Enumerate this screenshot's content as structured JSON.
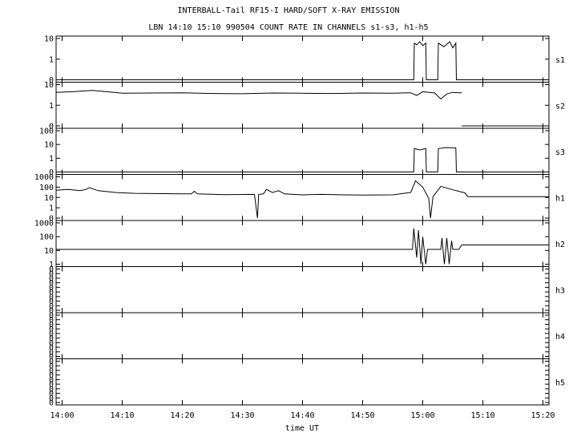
{
  "chart_data": {
    "type": "line",
    "title": "INTERBALL-Tail RF15-I HARD/SOFT X-RAY EMISSION",
    "subtitle": "LBN 14:10 15:10 990504  COUNT RATE IN CHANNELS s1-s3, h1-h5",
    "xlabel": "time UT",
    "xlim": [
      "13:59",
      "15:21"
    ],
    "x_ticks": [
      "14:00",
      "14:10",
      "14:20",
      "14:30",
      "14:40",
      "14:50",
      "15:00",
      "15:10",
      "15:20"
    ],
    "grid": false,
    "panels": [
      {
        "name": "s1",
        "y_ticks": [
          "10",
          "1",
          "0"
        ],
        "y_scale": "log",
        "series": [
          {
            "segments": [
              [
                [
                  "13:59",
                  0.0
                ],
                [
                  "14:58.5",
                  0.0
                ],
                [
                  "14:58.6",
                  6.0
                ],
                [
                  "14:59",
                  5.0
                ],
                [
                  "14:59.5",
                  7.0
                ],
                [
                  "15:00",
                  4.5
                ],
                [
                  "15:00.5",
                  6.0
                ],
                [
                  "15:00.6",
                  0.0
                ],
                [
                  "15:02.5",
                  0.0
                ],
                [
                  "15:02.6",
                  6.0
                ],
                [
                  "15:03.5",
                  4.0
                ],
                [
                  "15:04.5",
                  7.0
                ],
                [
                  "15:05",
                  3.5
                ],
                [
                  "15:05.5",
                  6.0
                ],
                [
                  "15:05.6",
                  0.0
                ],
                [
                  "15:21",
                  0.0
                ]
              ]
            ]
          }
        ]
      },
      {
        "name": "s2",
        "y_ticks": [
          "10",
          "1",
          "0"
        ],
        "y_scale": "log",
        "series": [
          {
            "segments": [
              [
                [
                  "13:59",
                  4.2
                ],
                [
                  "14:02",
                  4.6
                ],
                [
                  "14:05",
                  5.2
                ],
                [
                  "14:08",
                  4.4
                ],
                [
                  "14:10",
                  3.8
                ],
                [
                  "14:15",
                  3.9
                ],
                [
                  "14:20",
                  4.0
                ],
                [
                  "14:25",
                  3.7
                ],
                [
                  "14:30",
                  3.6
                ],
                [
                  "14:35",
                  3.9
                ],
                [
                  "14:40",
                  3.8
                ],
                [
                  "14:45",
                  3.7
                ],
                [
                  "14:50",
                  3.9
                ],
                [
                  "14:55",
                  3.8
                ],
                [
                  "14:58",
                  4.0
                ],
                [
                  "14:59",
                  3.0
                ],
                [
                  "15:00",
                  4.5
                ],
                [
                  "15:02",
                  3.9
                ],
                [
                  "15:03",
                  2.0
                ],
                [
                  "15:04",
                  3.5
                ],
                [
                  "15:05",
                  4.2
                ],
                [
                  "15:06",
                  4.0
                ],
                [
                  "15:06.5",
                  4.0
                ]
              ],
              [
                [
                  "15:06.5",
                  0.0
                ],
                [
                  "15:21",
                  0.0
                ]
              ]
            ]
          }
        ]
      },
      {
        "name": "s3",
        "y_ticks": [
          "100",
          "10",
          "1",
          "0"
        ],
        "y_scale": "log",
        "series": [
          {
            "segments": [
              [
                [
                  "13:59",
                  0.0
                ],
                [
                  "14:58.5",
                  0.0
                ],
                [
                  "14:58.6",
                  5.0
                ],
                [
                  "14:59.5",
                  4.0
                ],
                [
                  "15:00.5",
                  5.0
                ],
                [
                  "15:00.6",
                  0.0
                ],
                [
                  "15:02.5",
                  0.0
                ],
                [
                  "15:02.6",
                  5.0
                ],
                [
                  "15:04",
                  6.0
                ],
                [
                  "15:05.5",
                  5.5
                ],
                [
                  "15:05.6",
                  0.0
                ],
                [
                  "15:21",
                  0.0
                ]
              ]
            ]
          }
        ]
      },
      {
        "name": "h1",
        "y_ticks": [
          "1000",
          "100",
          "10",
          "1",
          "0"
        ],
        "y_scale": "log",
        "series": [
          {
            "segments": [
              [
                [
                  "13:59",
                  50
                ],
                [
                  "14:01",
                  60
                ],
                [
                  "14:03",
                  45
                ],
                [
                  "14:04",
                  60
                ],
                [
                  "14:04.5",
                  90
                ],
                [
                  "14:06",
                  45
                ],
                [
                  "14:09",
                  30
                ],
                [
                  "14:12",
                  25
                ],
                [
                  "14:20",
                  22
                ],
                [
                  "14:21.5",
                  22
                ],
                [
                  "14:22",
                  40
                ],
                [
                  "14:22.5",
                  22
                ],
                [
                  "14:27",
                  19
                ],
                [
                  "14:32",
                  20
                ],
                [
                  "14:32.5",
                  0
                ],
                [
                  "14:32.7",
                  20
                ],
                [
                  "14:33.5",
                  22
                ],
                [
                  "14:34",
                  60
                ],
                [
                  "14:35",
                  30
                ],
                [
                  "14:36",
                  45
                ],
                [
                  "14:37",
                  22
                ],
                [
                  "14:40",
                  18
                ],
                [
                  "14:43",
                  20
                ],
                [
                  "14:47",
                  18
                ],
                [
                  "14:50",
                  17
                ],
                [
                  "14:55",
                  18
                ],
                [
                  "14:58",
                  30
                ],
                [
                  "14:58.8",
                  400
                ],
                [
                  "15:00",
                  100
                ],
                [
                  "15:01",
                  8
                ],
                [
                  "15:01.3",
                  0
                ],
                [
                  "15:01.7",
                  12
                ],
                [
                  "15:03",
                  120
                ],
                [
                  "15:05",
                  55
                ],
                [
                  "15:07",
                  28
                ],
                [
                  "15:07.5",
                  12
                ],
                [
                  "15:21",
                  12
                ]
              ]
            ]
          }
        ]
      },
      {
        "name": "h2",
        "y_ticks": [
          "1000",
          "100",
          "10",
          "1"
        ],
        "y_scale": "log",
        "series": [
          {
            "segments": [
              [
                [
                  "13:59",
                  12
                ],
                [
                  "14:58.3",
                  12
                ],
                [
                  "14:58.5",
                  400
                ],
                [
                  "14:59",
                  3
                ],
                [
                  "14:59.3",
                  300
                ],
                [
                  "14:59.7",
                  1
                ],
                [
                  "15:00",
                  100
                ],
                [
                  "15:00.5",
                  1
                ],
                [
                  "15:00.8",
                  12
                ],
                [
                  "15:03",
                  12
                ],
                [
                  "15:03.2",
                  80
                ],
                [
                  "15:03.6",
                  1
                ],
                [
                  "15:04",
                  80
                ],
                [
                  "15:04.4",
                  1
                ],
                [
                  "15:04.8",
                  50
                ],
                [
                  "15:05",
                  12
                ],
                [
                  "15:06",
                  12
                ],
                [
                  "15:06.5",
                  25
                ],
                [
                  "15:21",
                  25
                ]
              ]
            ]
          }
        ]
      },
      {
        "name": "h3",
        "y_ticks": [
          "0",
          "0",
          "0",
          "0",
          "0",
          "0",
          "0",
          "0",
          "0",
          "0"
        ],
        "y_scale": "log",
        "series": []
      },
      {
        "name": "h4",
        "y_ticks": [
          "0",
          "0",
          "0",
          "0",
          "0",
          "0",
          "0",
          "0",
          "0",
          "0"
        ],
        "y_scale": "log",
        "series": []
      },
      {
        "name": "h5",
        "y_ticks": [
          "0",
          "0",
          "0",
          "0",
          "0",
          "0",
          "0",
          "0",
          "0",
          "0"
        ],
        "y_scale": "log",
        "series": []
      }
    ]
  }
}
